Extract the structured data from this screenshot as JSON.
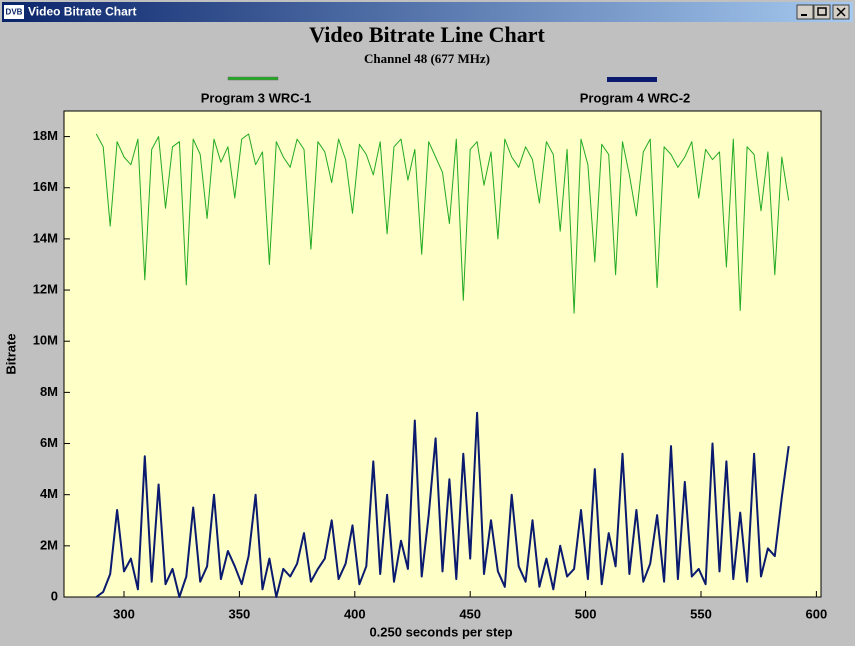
{
  "window": {
    "icon": "DVB",
    "title": "Video Bitrate Chart"
  },
  "chart_data": {
    "type": "line",
    "title": "Video Bitrate Line Chart",
    "subtitle": "Channel 48 (677 MHz)",
    "x_label": "0.250 seconds per step",
    "y_label": "Bitrate",
    "xlim": [
      274,
      602
    ],
    "ylim": [
      0,
      19000000
    ],
    "xticks": [
      300,
      350,
      400,
      450,
      500,
      550,
      600
    ],
    "yticks": [
      {
        "value": 0,
        "label": "0"
      },
      {
        "value": 2000000,
        "label": "2M"
      },
      {
        "value": 4000000,
        "label": "4M"
      },
      {
        "value": 6000000,
        "label": "6M"
      },
      {
        "value": 8000000,
        "label": "8M"
      },
      {
        "value": 10000000,
        "label": "10M"
      },
      {
        "value": 12000000,
        "label": "12M"
      },
      {
        "value": 14000000,
        "label": "14M"
      },
      {
        "value": 16000000,
        "label": "16M"
      },
      {
        "value": 18000000,
        "label": "18M"
      }
    ],
    "grid": false,
    "x": [
      288,
      291,
      294,
      297,
      300,
      303,
      306,
      309,
      312,
      315,
      318,
      321,
      324,
      327,
      330,
      333,
      336,
      339,
      342,
      345,
      348,
      351,
      354,
      357,
      360,
      363,
      366,
      369,
      372,
      375,
      378,
      381,
      384,
      387,
      390,
      393,
      396,
      399,
      402,
      405,
      408,
      411,
      414,
      417,
      420,
      423,
      426,
      429,
      432,
      435,
      438,
      441,
      444,
      447,
      450,
      453,
      456,
      459,
      462,
      465,
      468,
      471,
      474,
      477,
      480,
      483,
      486,
      489,
      492,
      495,
      498,
      501,
      504,
      507,
      510,
      513,
      516,
      519,
      522,
      525,
      528,
      531,
      534,
      537,
      540,
      543,
      546,
      549,
      552,
      555,
      558,
      561,
      564,
      567,
      570,
      573,
      576,
      579,
      582,
      585,
      588
    ],
    "series": [
      {
        "name": "Program 3 WRC-1",
        "color": "#22aa22",
        "width": 1,
        "values": [
          18100000,
          17600000,
          14500000,
          17800000,
          17200000,
          16900000,
          17900000,
          12400000,
          17500000,
          18000000,
          15200000,
          17600000,
          17800000,
          12200000,
          17900000,
          17300000,
          14800000,
          17900000,
          17000000,
          17600000,
          15600000,
          17900000,
          18100000,
          16900000,
          17400000,
          13000000,
          17800000,
          17200000,
          16800000,
          17900000,
          17500000,
          13600000,
          17800000,
          17400000,
          16200000,
          17900000,
          17100000,
          15000000,
          17700000,
          17300000,
          16500000,
          17800000,
          14200000,
          17600000,
          17900000,
          16300000,
          17500000,
          13400000,
          17800000,
          17200000,
          16600000,
          14600000,
          17900000,
          11600000,
          17500000,
          17800000,
          16100000,
          17400000,
          14000000,
          17900000,
          17200000,
          16800000,
          17600000,
          17100000,
          15400000,
          17800000,
          17300000,
          14300000,
          17500000,
          11100000,
          17900000,
          16900000,
          13100000,
          17700000,
          17300000,
          12600000,
          17800000,
          16500000,
          14900000,
          17400000,
          17900000,
          12100000,
          17600000,
          17300000,
          16800000,
          17200000,
          17800000,
          15600000,
          17500000,
          17100000,
          17400000,
          12900000,
          17900000,
          11200000,
          17600000,
          17300000,
          15100000,
          17400000,
          12600000,
          17200000,
          15500000
        ]
      },
      {
        "name": "Program 4 WRC-2",
        "color": "#0a1a6e",
        "width": 2,
        "values": [
          0,
          200000,
          900000,
          3400000,
          1000000,
          1500000,
          300000,
          5500000,
          600000,
          4400000,
          500000,
          1100000,
          0,
          800000,
          3500000,
          600000,
          1200000,
          4000000,
          700000,
          1800000,
          1200000,
          500000,
          1600000,
          4000000,
          300000,
          1500000,
          0,
          1100000,
          800000,
          1300000,
          2500000,
          600000,
          1100000,
          1500000,
          3000000,
          700000,
          1300000,
          2800000,
          500000,
          1200000,
          5300000,
          900000,
          4000000,
          600000,
          2200000,
          1100000,
          6900000,
          800000,
          3200000,
          6200000,
          1000000,
          4600000,
          700000,
          5600000,
          1500000,
          7200000,
          900000,
          3000000,
          1000000,
          400000,
          4000000,
          1200000,
          600000,
          3000000,
          400000,
          1500000,
          300000,
          2000000,
          800000,
          1100000,
          3400000,
          700000,
          5000000,
          500000,
          2500000,
          1200000,
          5600000,
          900000,
          3400000,
          600000,
          1300000,
          3200000,
          600000,
          5900000,
          700000,
          4500000,
          800000,
          1100000,
          500000,
          6000000,
          1000000,
          5300000,
          700000,
          3300000,
          600000,
          5600000,
          800000,
          1900000,
          1600000,
          3900000,
          5900000
        ]
      }
    ]
  }
}
